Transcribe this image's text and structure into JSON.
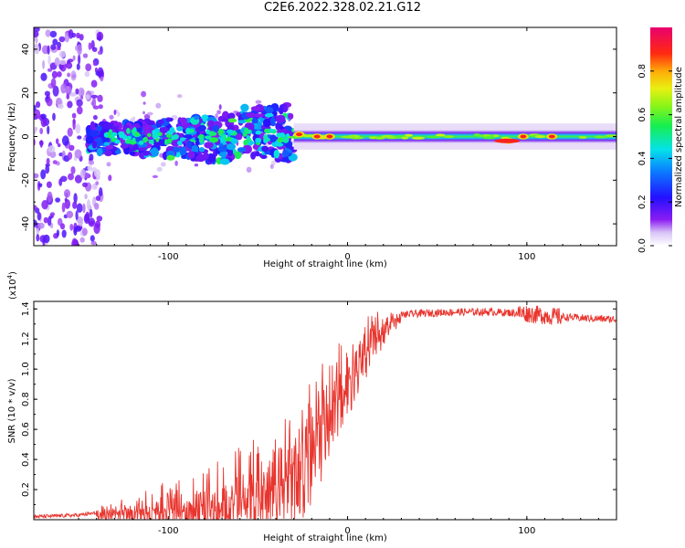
{
  "title": "C2E6.2022.328.02.21.G12",
  "chart_data": [
    {
      "type": "heatmap",
      "title": "C2E6.2022.328.02.21.G12",
      "xlabel": "Height of straight line (km)",
      "ylabel": "Frequency (Hz)",
      "xlim": [
        -175,
        150
      ],
      "ylim": [
        -50,
        50
      ],
      "xticks": [
        -100,
        0,
        100
      ],
      "xtick_labels": [
        "-100",
        "0",
        "100"
      ],
      "yticks": [
        -40,
        -20,
        0,
        20,
        40
      ],
      "ytick_labels": [
        "-40",
        "-20",
        "0",
        "20",
        "40"
      ],
      "colorbar": {
        "label": "Normalized spectral amplitude",
        "range": [
          0,
          1
        ],
        "ticks": [
          0.0,
          0.2,
          0.4,
          0.6,
          0.8
        ],
        "tick_labels": [
          "0.0",
          "0.2",
          "0.4",
          "0.6",
          "0.8"
        ],
        "colormap": "rainbow"
      },
      "regions": [
        {
          "x_range": [
            -175,
            -145
          ],
          "freq_spread": 50,
          "amplitude": 0.05
        },
        {
          "x_range": [
            -145,
            -30
          ],
          "freq_spread": 10,
          "amplitude": 0.4
        },
        {
          "x_range": [
            -30,
            150
          ],
          "freq_spread": 3,
          "amplitude": 0.55
        }
      ],
      "peaks": [
        {
          "x": -27,
          "y": 1,
          "amplitude": 0.9
        },
        {
          "x": -17,
          "y": 0,
          "amplitude": 0.9
        },
        {
          "x": -10,
          "y": 0,
          "amplitude": 0.9
        },
        {
          "x": 90,
          "y": -2,
          "amplitude": 0.9
        },
        {
          "x": 98,
          "y": 0,
          "amplitude": 0.9
        },
        {
          "x": 114,
          "y": 0,
          "amplitude": 0.9
        }
      ]
    },
    {
      "type": "line",
      "xlabel": "Height of straight line (km)",
      "ylabel": "SNR (10 * v/v)",
      "y_multiplier": "(x10^4)",
      "xlim": [
        -175,
        150
      ],
      "ylim": [
        0,
        1.45
      ],
      "xticks": [
        -100,
        0,
        100
      ],
      "xtick_labels": [
        "-100",
        "0",
        "100"
      ],
      "yticks": [
        0.2,
        0.4,
        0.6,
        0.8,
        1.0,
        1.2,
        1.4
      ],
      "ytick_labels": [
        "0.2",
        "0.4",
        "0.6",
        "0.8",
        "1.0",
        "1.2",
        "1.4"
      ],
      "color": "#e8352e",
      "series": [
        {
          "x": [
            -175,
            -150,
            -130,
            -120,
            -100,
            -80,
            -60,
            -50,
            -40,
            -30,
            -25,
            -20,
            -15,
            -10,
            -5,
            0,
            5,
            10,
            15,
            20,
            25,
            30,
            40,
            60,
            80,
            100,
            115,
            130,
            150
          ],
          "y": [
            0.02,
            0.03,
            0.06,
            0.08,
            0.11,
            0.15,
            0.22,
            0.27,
            0.33,
            0.43,
            0.55,
            0.62,
            0.7,
            0.8,
            0.9,
            1.0,
            1.08,
            1.17,
            1.24,
            1.29,
            1.33,
            1.36,
            1.37,
            1.38,
            1.38,
            1.37,
            1.35,
            1.34,
            1.33
          ]
        }
      ]
    }
  ]
}
